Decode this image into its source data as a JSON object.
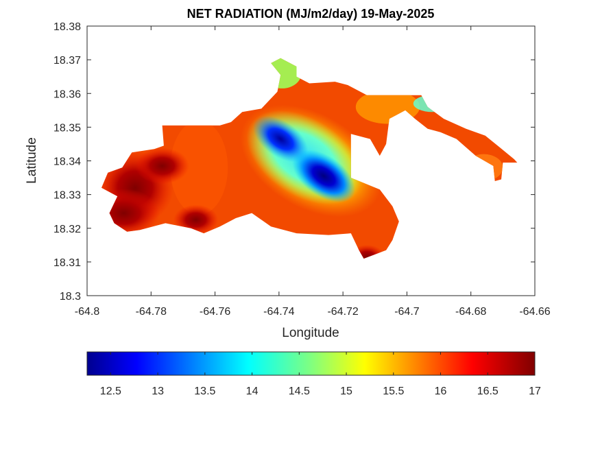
{
  "chart_data": {
    "type": "heatmap",
    "title": "NET RADIATION (MJ/m2/day) 19-May-2025",
    "xlabel": "Longitude",
    "ylabel": "Latitude",
    "xlim": [
      -64.8,
      -64.66
    ],
    "ylim": [
      18.3,
      18.38
    ],
    "xticks": [
      -64.8,
      -64.78,
      -64.76,
      -64.74,
      -64.72,
      -64.7,
      -64.68,
      -64.66
    ],
    "xtick_labels": [
      "-64.8",
      "-64.78",
      "-64.76",
      "-64.74",
      "-64.72",
      "-64.7",
      "-64.68",
      "-64.66"
    ],
    "yticks": [
      18.3,
      18.31,
      18.32,
      18.33,
      18.34,
      18.35,
      18.36,
      18.37,
      18.38
    ],
    "ytick_labels": [
      "18.3",
      "18.31",
      "18.32",
      "18.33",
      "18.34",
      "18.35",
      "18.36",
      "18.37",
      "18.38"
    ],
    "grid": false,
    "colormap": "jet",
    "colorbar": {
      "location": "bottom",
      "range": [
        12.25,
        17
      ],
      "ticks": [
        12.5,
        13,
        13.5,
        14,
        14.5,
        15,
        15.5,
        16,
        16.5,
        17
      ],
      "tick_labels": [
        "12.5",
        "13",
        "13.5",
        "14",
        "14.5",
        "15",
        "15.5",
        "16",
        "16.5",
        "17"
      ]
    },
    "region_outline": [
      [
        -64.7935,
        18.3365
      ],
      [
        -64.789,
        18.338
      ],
      [
        -64.786,
        18.3425
      ],
      [
        -64.779,
        18.3435
      ],
      [
        -64.776,
        18.3445
      ],
      [
        -64.7765,
        18.3505
      ],
      [
        -64.763,
        18.3505
      ],
      [
        -64.7585,
        18.3505
      ],
      [
        -64.755,
        18.3515
      ],
      [
        -64.7515,
        18.3545
      ],
      [
        -64.7455,
        18.3555
      ],
      [
        -64.7435,
        18.3575
      ],
      [
        -64.7405,
        18.3605
      ],
      [
        -64.7395,
        18.3655
      ],
      [
        -64.7425,
        18.369
      ],
      [
        -64.7395,
        18.3705
      ],
      [
        -64.7345,
        18.368
      ],
      [
        -64.7345,
        18.365
      ],
      [
        -64.7305,
        18.363
      ],
      [
        -64.7225,
        18.3635
      ],
      [
        -64.7185,
        18.3625
      ],
      [
        -64.7125,
        18.3595
      ],
      [
        -64.7045,
        18.3595
      ],
      [
        -64.6995,
        18.3595
      ],
      [
        -64.6955,
        18.3595
      ],
      [
        -64.6935,
        18.356
      ],
      [
        -64.6885,
        18.3525
      ],
      [
        -64.6815,
        18.3495
      ],
      [
        -64.6755,
        18.3475
      ],
      [
        -64.671,
        18.344
      ],
      [
        -64.6665,
        18.3405
      ],
      [
        -64.6655,
        18.3395
      ],
      [
        -64.67,
        18.3395
      ],
      [
        -64.6705,
        18.3345
      ],
      [
        -64.6725,
        18.334
      ],
      [
        -64.673,
        18.3385
      ],
      [
        -64.6785,
        18.3415
      ],
      [
        -64.6845,
        18.3465
      ],
      [
        -64.6895,
        18.3485
      ],
      [
        -64.6935,
        18.3495
      ],
      [
        -64.6975,
        18.3525
      ],
      [
        -64.7005,
        18.355
      ],
      [
        -64.7035,
        18.3535
      ],
      [
        -64.7055,
        18.3525
      ],
      [
        -64.7065,
        18.345
      ],
      [
        -64.7085,
        18.3415
      ],
      [
        -64.7115,
        18.3465
      ],
      [
        -64.7175,
        18.348
      ],
      [
        -64.7175,
        18.335
      ],
      [
        -64.7085,
        18.3315
      ],
      [
        -64.7045,
        18.3265
      ],
      [
        -64.7025,
        18.322
      ],
      [
        -64.7045,
        18.3165
      ],
      [
        -64.7065,
        18.3135
      ],
      [
        -64.7135,
        18.311
      ],
      [
        -64.715,
        18.3135
      ],
      [
        -64.7175,
        18.3185
      ],
      [
        -64.7245,
        18.318
      ],
      [
        -64.7345,
        18.3185
      ],
      [
        -64.7425,
        18.3205
      ],
      [
        -64.7485,
        18.3245
      ],
      [
        -64.7535,
        18.323
      ],
      [
        -64.7585,
        18.3205
      ],
      [
        -64.7635,
        18.3185
      ],
      [
        -64.7675,
        18.32
      ],
      [
        -64.7755,
        18.3215
      ],
      [
        -64.7835,
        18.3195
      ],
      [
        -64.7875,
        18.319
      ],
      [
        -64.7915,
        18.3215
      ],
      [
        -64.793,
        18.3245
      ],
      [
        -64.7905,
        18.3295
      ],
      [
        -64.7955,
        18.332
      ]
    ],
    "field_features": [
      {
        "kind": "low",
        "value": 12.3,
        "lon": -64.726,
        "lat": 18.3355,
        "radius": 0.008
      },
      {
        "kind": "low",
        "value": 12.6,
        "lon": -64.7395,
        "lat": 18.3465,
        "radius": 0.007
      },
      {
        "kind": "high",
        "value": 16.9,
        "lon": -64.7885,
        "lat": 18.3245,
        "radius": 0.008
      },
      {
        "kind": "high",
        "value": 16.8,
        "lon": -64.7765,
        "lat": 18.3385,
        "radius": 0.006
      },
      {
        "kind": "high",
        "value": 16.8,
        "lon": -64.766,
        "lat": 18.3225,
        "radius": 0.005
      },
      {
        "kind": "high",
        "value": 16.9,
        "lon": -64.7125,
        "lat": 18.3115,
        "radius": 0.004
      }
    ]
  }
}
